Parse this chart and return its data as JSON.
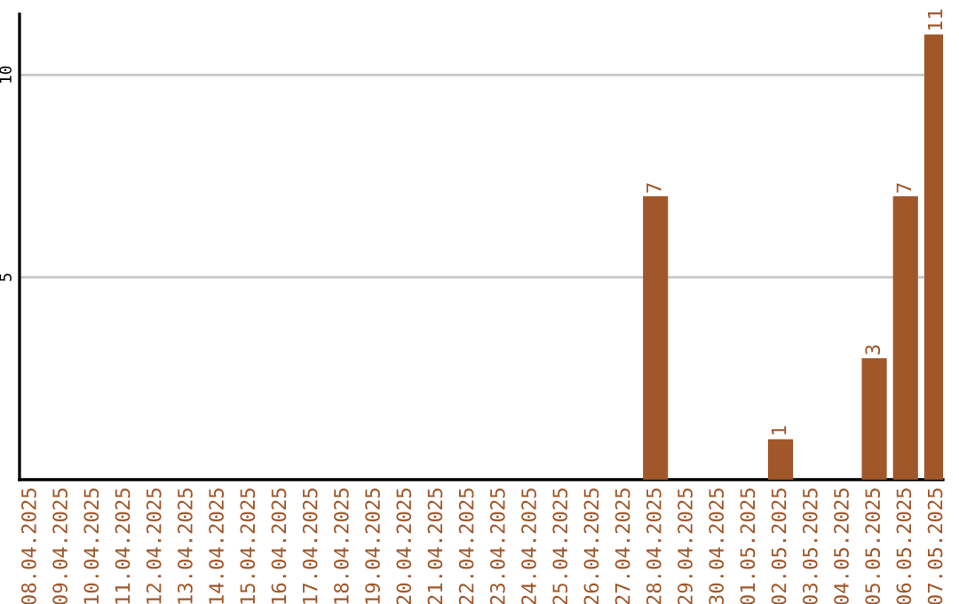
{
  "chart_data": {
    "type": "bar",
    "categories": [
      "08.04.2025",
      "09.04.2025",
      "10.04.2025",
      "11.04.2025",
      "12.04.2025",
      "13.04.2025",
      "14.04.2025",
      "15.04.2025",
      "16.04.2025",
      "17.04.2025",
      "18.04.2025",
      "19.04.2025",
      "20.04.2025",
      "21.04.2025",
      "22.04.2025",
      "23.04.2025",
      "24.04.2025",
      "25.04.2025",
      "26.04.2025",
      "27.04.2025",
      "28.04.2025",
      "29.04.2025",
      "30.04.2025",
      "01.05.2025",
      "02.05.2025",
      "03.05.2025",
      "04.05.2025",
      "05.05.2025",
      "06.05.2025",
      "07.05.2025"
    ],
    "values": [
      0,
      0,
      0,
      0,
      0,
      0,
      0,
      0,
      0,
      0,
      0,
      0,
      0,
      0,
      0,
      0,
      0,
      0,
      0,
      0,
      7,
      0,
      0,
      0,
      1,
      0,
      0,
      3,
      7,
      11
    ],
    "value_labels": [
      null,
      null,
      null,
      null,
      null,
      null,
      null,
      null,
      null,
      null,
      null,
      null,
      null,
      null,
      null,
      null,
      null,
      null,
      null,
      null,
      "7",
      null,
      null,
      null,
      "1",
      null,
      null,
      "3",
      "7",
      "11"
    ],
    "color": "#a0572a",
    "ylim": [
      0,
      11.5
    ],
    "yticks": [
      {
        "value": 0,
        "label": null
      },
      5,
      10
    ],
    "grid": "y"
  }
}
